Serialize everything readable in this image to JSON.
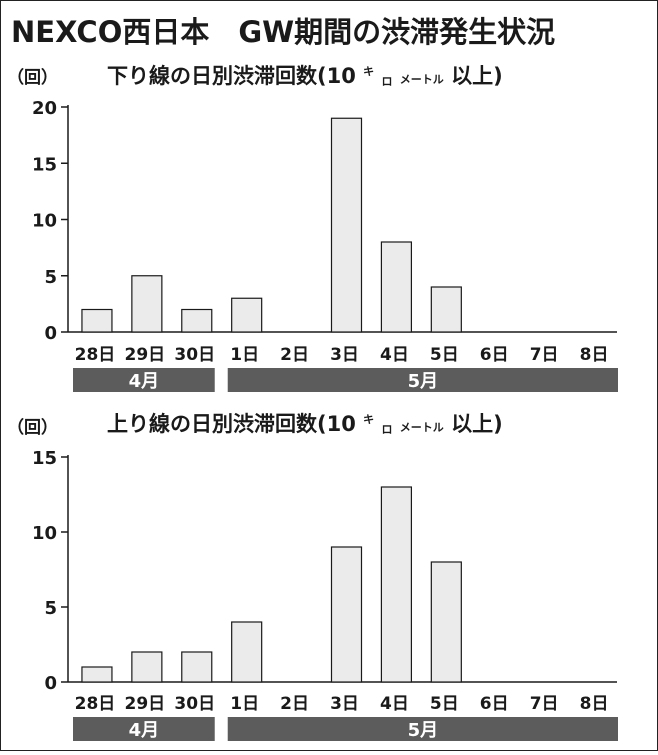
{
  "title": "NEXCO西日本　GW期間の渋滞発生状況",
  "chart_data": [
    {
      "type": "bar",
      "title": "下り線の日別渋滞回数（10キロメートル以上）",
      "title_parts": {
        "prefix": "下り線の日別渋滞回数(10",
        "ki": "キ",
        "ro": "ロ",
        "meter": "メートル",
        "suffix": "以上)"
      },
      "ylabel": "（回）",
      "ylim": [
        0,
        20
      ],
      "yticks": [
        "0",
        "5",
        "10",
        "15",
        "20"
      ],
      "categories": [
        "28日",
        "29日",
        "30日",
        "1日",
        "2日",
        "3日",
        "4日",
        "5日",
        "6日",
        "7日",
        "8日"
      ],
      "values": [
        2,
        5,
        2,
        3,
        0,
        19,
        8,
        4,
        0,
        0,
        0
      ],
      "month_groups": [
        {
          "label": "4月",
          "span": 3
        },
        {
          "label": "5月",
          "span": 8
        }
      ],
      "grid": false,
      "bar_color": "#ebebeb",
      "month_bar_color": "#5c5c5c"
    },
    {
      "type": "bar",
      "title": "上り線の日別渋滞回数（10キロメートル以上）",
      "title_parts": {
        "prefix": "上り線の日別渋滞回数(10",
        "ki": "キ",
        "ro": "ロ",
        "meter": "メートル",
        "suffix": "以上)"
      },
      "ylabel": "（回）",
      "ylim": [
        0,
        15
      ],
      "yticks": [
        "0",
        "5",
        "10",
        "15"
      ],
      "categories": [
        "28日",
        "29日",
        "30日",
        "1日",
        "2日",
        "3日",
        "4日",
        "5日",
        "6日",
        "7日",
        "8日"
      ],
      "values": [
        1,
        2,
        2,
        4,
        0,
        9,
        13,
        8,
        0,
        0,
        0
      ],
      "month_groups": [
        {
          "label": "4月",
          "span": 3
        },
        {
          "label": "5月",
          "span": 8
        }
      ],
      "grid": false,
      "bar_color": "#ebebeb",
      "month_bar_color": "#5c5c5c"
    }
  ]
}
